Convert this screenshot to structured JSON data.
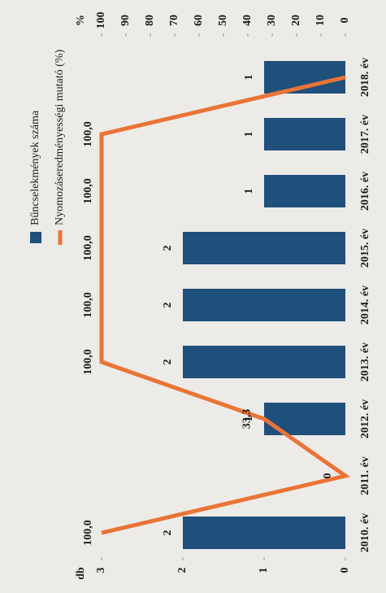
{
  "chart_data": {
    "type": "bar",
    "categories": [
      "2010. év",
      "2011. év",
      "2012. év",
      "2013. év",
      "2014. év",
      "2015. év",
      "2016. év",
      "2017. év",
      "2018. év"
    ],
    "ylabel": "db",
    "y2label": "%",
    "ylim": [
      0,
      3
    ],
    "yticks": [
      0,
      1,
      2,
      3
    ],
    "y2lim": [
      0,
      100
    ],
    "y2ticks": [
      0,
      10,
      20,
      30,
      40,
      50,
      60,
      70,
      80,
      90,
      100
    ],
    "series": [
      {
        "name": "Bűncselekmények száma",
        "type": "bar",
        "color": "#1f4f7b",
        "values": [
          2,
          0,
          1,
          2,
          2,
          2,
          1,
          1,
          1
        ],
        "value_labels": [
          "2",
          null,
          "1",
          "2",
          "2",
          "2",
          "1",
          "1",
          "1"
        ]
      },
      {
        "name": "Nyomozáseredményességi mutató (%)",
        "type": "line",
        "axis": "y2",
        "color": "#ea7435",
        "values": [
          100,
          0,
          33.3,
          100,
          100,
          100,
          100,
          100,
          0
        ],
        "value_labels": [
          "100,0",
          "0",
          "33,3",
          "100,0",
          "100,0",
          "100,0",
          "100,0",
          "100,0",
          null
        ]
      }
    ],
    "legend": "top-left"
  }
}
